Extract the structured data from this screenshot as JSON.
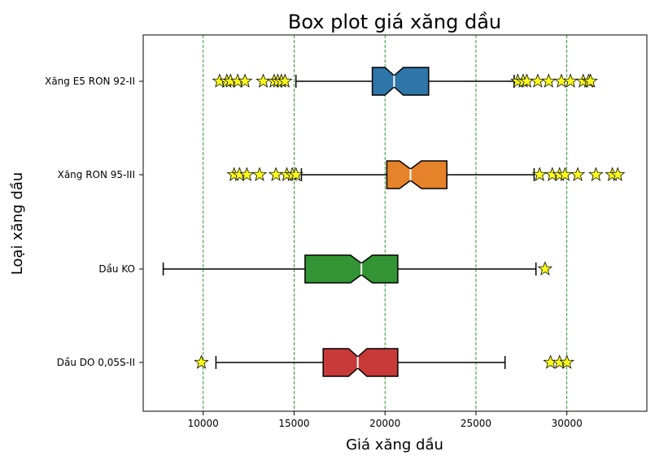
{
  "chart_data": {
    "type": "boxplot",
    "orientation": "horizontal",
    "notched": true,
    "title": "Box plot giá xăng dầu",
    "xlabel": "Giá xăng dầu",
    "ylabel": "Loại xăng dầu",
    "xlim": [
      6700,
      34400
    ],
    "xticks": [
      10000,
      15000,
      20000,
      25000,
      30000
    ],
    "grid": "x, dashed green",
    "categories": [
      "Xăng E5 RON 92-II",
      "Xăng RON 95-III",
      "Dầu KO",
      "Dầu DO 0,05S-II"
    ],
    "series": [
      {
        "category": "Xăng E5 RON 92-II",
        "color": "#2e75a8",
        "whisker_low": 15100,
        "q1": 19300,
        "median": 20500,
        "q3": 22400,
        "whisker_high": 27100,
        "notch": [
          20000,
          21000
        ],
        "outliers": [
          10900,
          11300,
          11500,
          11900,
          12300,
          13300,
          13900,
          14100,
          14300,
          14500,
          27300,
          27600,
          27800,
          28400,
          29000,
          29700,
          30200,
          30900,
          31200,
          31300
        ]
      },
      {
        "category": "Xăng RON 95-III",
        "color": "#e6822a",
        "whisker_low": 15400,
        "q1": 20100,
        "median": 21400,
        "q3": 23400,
        "whisker_high": 28200,
        "notch": [
          20800,
          22000
        ],
        "outliers": [
          11700,
          12000,
          12400,
          13100,
          14000,
          14600,
          14900,
          15100,
          28500,
          29200,
          29600,
          29900,
          30600,
          31600,
          32500,
          32800
        ]
      },
      {
        "category": "Dầu KO",
        "color": "#339433",
        "whisker_low": 7800,
        "q1": 15600,
        "median": 18700,
        "q3": 20700,
        "whisker_high": 28300,
        "notch": [
          18100,
          19300
        ],
        "outliers": [
          28800
        ]
      },
      {
        "category": "Dầu DO 0,05S-II",
        "color": "#c83a37",
        "whisker_low": 10700,
        "q1": 16600,
        "median": 18500,
        "q3": 20700,
        "whisker_high": 26600,
        "notch": [
          18000,
          19000
        ],
        "outliers": [
          9900,
          29100,
          29600,
          30000
        ]
      }
    ],
    "outlier_marker": {
      "shape": "star",
      "color": "#ffff1a"
    }
  }
}
